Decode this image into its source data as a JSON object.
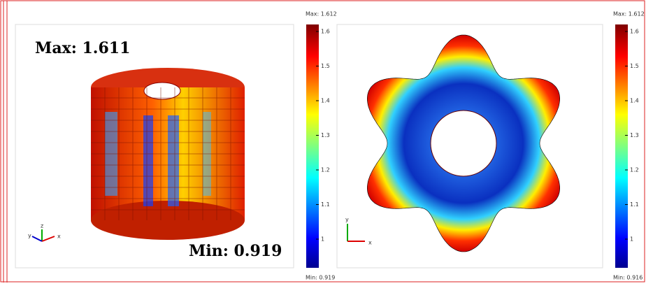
{
  "panels": [
    {
      "annotation_max": "Max: 1.611",
      "annotation_min": "Min: 0.919",
      "colorbar": {
        "max_label": "Max: 1.612",
        "min_label": "Min: 0.919",
        "ticks": [
          "1.6",
          "1.5",
          "1.4",
          "1.3",
          "1.2",
          "1.1",
          "1"
        ]
      },
      "axes": {
        "y": "y",
        "z": "z",
        "x": "x"
      }
    },
    {
      "colorbar": {
        "max_label": "Max: 1.612",
        "min_label": "Min: 0.916",
        "ticks": [
          "1.6",
          "1.5",
          "1.4",
          "1.3",
          "1.2",
          "1.1",
          "1"
        ]
      },
      "axes": {
        "y": "y",
        "x": "x"
      }
    }
  ]
}
